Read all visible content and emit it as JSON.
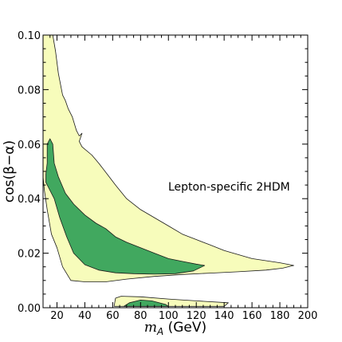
{
  "chart_data": {
    "type": "area",
    "xlabel": "m_A (GeV)",
    "ylabel": "cos(β−α)",
    "xlim": [
      10,
      200
    ],
    "ylim": [
      0.0,
      0.1
    ],
    "x_ticks": [
      "20",
      "40",
      "60",
      "80",
      "100",
      "120",
      "140",
      "160",
      "180",
      "200"
    ],
    "y_ticks": [
      "0.00",
      "0.02",
      "0.04",
      "0.06",
      "0.08",
      "0.10"
    ],
    "annotation": "Lepton-specific 2HDM",
    "colors": {
      "outer_region": "#f7fcbb",
      "inner_region": "#41a85f",
      "contour_line": "#1a1a1a"
    },
    "regions": [
      {
        "level": "outer",
        "polygon": [
          [
            10,
            0.1
          ],
          [
            17,
            0.1
          ],
          [
            19,
            0.094
          ],
          [
            21,
            0.086
          ],
          [
            24,
            0.078
          ],
          [
            26,
            0.076
          ],
          [
            28,
            0.073
          ],
          [
            31,
            0.07
          ],
          [
            34,
            0.065
          ],
          [
            36,
            0.063
          ],
          [
            38,
            0.064
          ],
          [
            36,
            0.061
          ],
          [
            38,
            0.059
          ],
          [
            45,
            0.056
          ],
          [
            50,
            0.053
          ],
          [
            56,
            0.049
          ],
          [
            62,
            0.045
          ],
          [
            70,
            0.04
          ],
          [
            80,
            0.036
          ],
          [
            90,
            0.033
          ],
          [
            100,
            0.03
          ],
          [
            110,
            0.027
          ],
          [
            120,
            0.025
          ],
          [
            130,
            0.023
          ],
          [
            140,
            0.021
          ],
          [
            160,
            0.018
          ],
          [
            180,
            0.0165
          ],
          [
            190,
            0.0155
          ],
          [
            182,
            0.0145
          ],
          [
            170,
            0.0138
          ],
          [
            150,
            0.0132
          ],
          [
            130,
            0.0127
          ],
          [
            110,
            0.0122
          ],
          [
            90,
            0.0115
          ],
          [
            70,
            0.0105
          ],
          [
            55,
            0.0095
          ],
          [
            40,
            0.0095
          ],
          [
            30,
            0.01
          ],
          [
            24,
            0.015
          ],
          [
            20,
            0.022
          ],
          [
            16,
            0.027
          ],
          [
            13,
            0.036
          ],
          [
            11,
            0.043
          ],
          [
            10,
            0.048
          ]
        ]
      },
      {
        "level": "inner",
        "polygon": [
          [
            13,
            0.06
          ],
          [
            15,
            0.062
          ],
          [
            17,
            0.06
          ],
          [
            18,
            0.053
          ],
          [
            21,
            0.048
          ],
          [
            26,
            0.042
          ],
          [
            32,
            0.038
          ],
          [
            40,
            0.034
          ],
          [
            48,
            0.031
          ],
          [
            55,
            0.029
          ],
          [
            62,
            0.026
          ],
          [
            70,
            0.024
          ],
          [
            80,
            0.022
          ],
          [
            90,
            0.02
          ],
          [
            100,
            0.018
          ],
          [
            110,
            0.017
          ],
          [
            120,
            0.016
          ],
          [
            126,
            0.0155
          ],
          [
            118,
            0.0135
          ],
          [
            105,
            0.0125
          ],
          [
            90,
            0.0123
          ],
          [
            75,
            0.0125
          ],
          [
            62,
            0.0128
          ],
          [
            50,
            0.0138
          ],
          [
            40,
            0.0158
          ],
          [
            32,
            0.02
          ],
          [
            27,
            0.026
          ],
          [
            22,
            0.033
          ],
          [
            18,
            0.04
          ],
          [
            14,
            0.044
          ],
          [
            12,
            0.046
          ],
          [
            12,
            0.049
          ],
          [
            13,
            0.053
          ]
        ]
      },
      {
        "level": "outer",
        "polygon": [
          [
            61,
            0.0005
          ],
          [
            62,
            0.0035
          ],
          [
            66,
            0.0042
          ],
          [
            80,
            0.004
          ],
          [
            100,
            0.0032
          ],
          [
            120,
            0.0025
          ],
          [
            143,
            0.0018
          ],
          [
            140,
            0.0005
          ]
        ]
      },
      {
        "level": "inner",
        "polygon": [
          [
            68,
            0.0005
          ],
          [
            72,
            0.0018
          ],
          [
            80,
            0.0028
          ],
          [
            88,
            0.0025
          ],
          [
            98,
            0.0012
          ],
          [
            100,
            0.0005
          ]
        ]
      }
    ]
  }
}
